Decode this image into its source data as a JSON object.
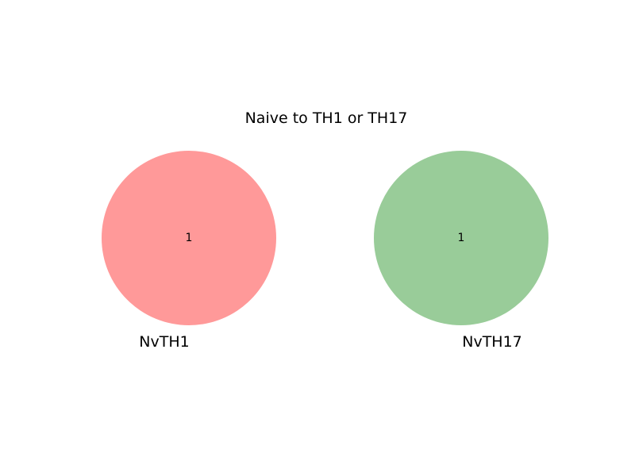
{
  "chart_data": {
    "type": "venn",
    "title": "Naive to TH1 or TH17",
    "sets": [
      {
        "name": "NvTH1",
        "count": 1,
        "color": "#ff9999"
      },
      {
        "name": "NvTH17",
        "count": 1,
        "color": "#99cc99"
      }
    ],
    "intersection_count": 0
  }
}
